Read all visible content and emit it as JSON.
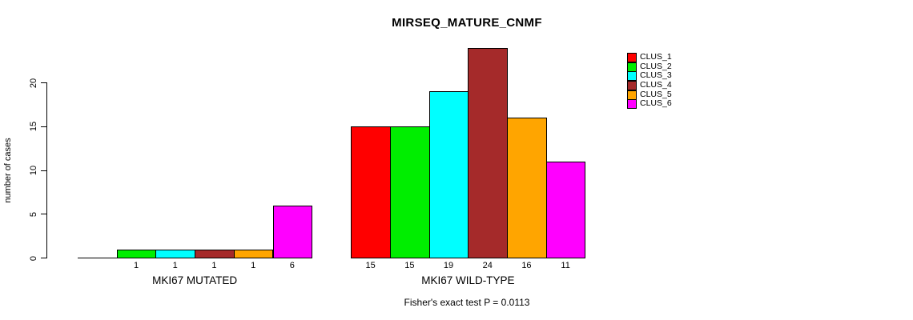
{
  "chart_data": {
    "type": "bar",
    "title": "MIRSEQ_MATURE_CNMF",
    "ylabel": "number of cases",
    "xlabel": "",
    "ylim": [
      0,
      20
    ],
    "yticks": [
      0,
      5,
      10,
      15,
      20
    ],
    "grid": false,
    "legend_position": "right",
    "legend": [
      {
        "name": "CLUS_1",
        "color": "#FF0000"
      },
      {
        "name": "CLUS_2",
        "color": "#00EE00"
      },
      {
        "name": "CLUS_3",
        "color": "#00FFFF"
      },
      {
        "name": "CLUS_4",
        "color": "#A52A2A"
      },
      {
        "name": "CLUS_5",
        "color": "#FFA500"
      },
      {
        "name": "CLUS_6",
        "color": "#FF00FF"
      }
    ],
    "groups": [
      {
        "label": "MKI67 MUTATED",
        "values": [
          0,
          1,
          1,
          1,
          1,
          6
        ],
        "bar_labels": [
          "",
          "1",
          "1",
          "1",
          "1",
          "6"
        ]
      },
      {
        "label": "MKI67 WILD-TYPE",
        "values": [
          15,
          15,
          19,
          24,
          16,
          11
        ],
        "bar_labels": [
          "15",
          "15",
          "19",
          "24",
          "16",
          "11"
        ]
      }
    ],
    "footnote": "Fisher's exact test P = 0.0113"
  }
}
